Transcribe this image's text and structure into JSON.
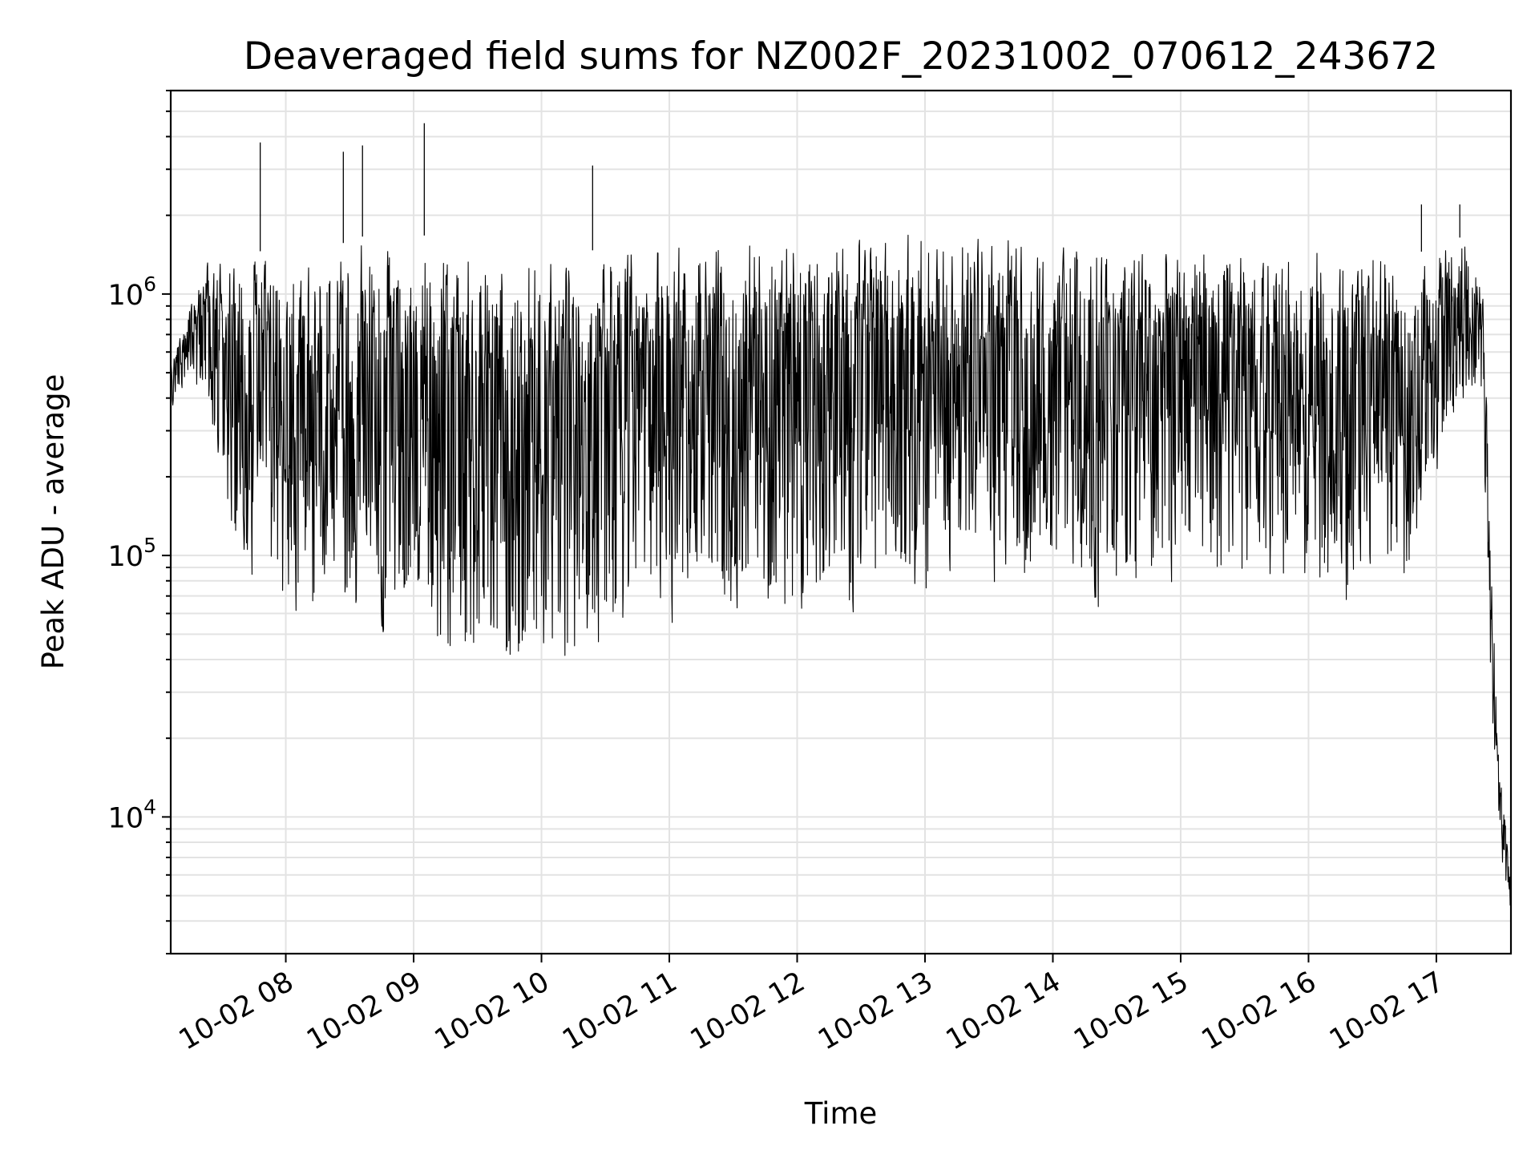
{
  "chart_data": {
    "type": "line",
    "title": "Deaveraged field sums for NZ002F_20231002_070612_243672",
    "xlabel": "Time",
    "ylabel": "Peak ADU - average",
    "yscale": "log",
    "xlim": [
      "2023-10-02 07:06",
      "2023-10-02 17:35"
    ],
    "ylim": [
      3000,
      6000000
    ],
    "grid": true,
    "x_ticks": [
      {
        "value": "2023-10-02 08:00",
        "label": "10-02 08"
      },
      {
        "value": "2023-10-02 09:00",
        "label": "10-02 09"
      },
      {
        "value": "2023-10-02 10:00",
        "label": "10-02 10"
      },
      {
        "value": "2023-10-02 11:00",
        "label": "10-02 11"
      },
      {
        "value": "2023-10-02 12:00",
        "label": "10-02 12"
      },
      {
        "value": "2023-10-02 13:00",
        "label": "10-02 13"
      },
      {
        "value": "2023-10-02 14:00",
        "label": "10-02 14"
      },
      {
        "value": "2023-10-02 15:00",
        "label": "10-02 15"
      },
      {
        "value": "2023-10-02 16:00",
        "label": "10-02 16"
      },
      {
        "value": "2023-10-02 17:00",
        "label": "10-02 17"
      }
    ],
    "y_ticks": [
      {
        "value": 10000,
        "base": "10",
        "exp": "4"
      },
      {
        "value": 100000,
        "base": "10",
        "exp": "5"
      },
      {
        "value": 1000000,
        "base": "10",
        "exp": "6"
      }
    ],
    "series_color": "#000000",
    "envelope": {
      "note": "dense line series; upper and lower envelope in data units",
      "x": [
        "2023-10-02 07:06",
        "2023-10-02 07:15",
        "2023-10-02 07:25",
        "2023-10-02 07:35",
        "2023-10-02 07:45",
        "2023-10-02 08:00",
        "2023-10-02 08:20",
        "2023-10-02 08:40",
        "2023-10-02 09:00",
        "2023-10-02 09:20",
        "2023-10-02 09:40",
        "2023-10-02 10:00",
        "2023-10-02 10:20",
        "2023-10-02 10:40",
        "2023-10-02 11:00",
        "2023-10-02 11:30",
        "2023-10-02 12:00",
        "2023-10-02 12:30",
        "2023-10-02 13:00",
        "2023-10-02 13:30",
        "2023-10-02 14:00",
        "2023-10-02 14:15",
        "2023-10-02 14:30",
        "2023-10-02 15:00",
        "2023-10-02 15:30",
        "2023-10-02 16:00",
        "2023-10-02 16:15",
        "2023-10-02 16:30",
        "2023-10-02 16:45",
        "2023-10-02 17:00",
        "2023-10-02 17:15",
        "2023-10-02 17:22",
        "2023-10-02 17:26",
        "2023-10-02 17:30",
        "2023-10-02 17:35"
      ],
      "upper": [
        550000,
        900000,
        1500000,
        1300000,
        1500000,
        1300000,
        1500000,
        1700000,
        1700000,
        1600000,
        1400000,
        1450000,
        1450000,
        1550000,
        1650000,
        1700000,
        1750000,
        1700000,
        1800000,
        1700000,
        1650000,
        1700000,
        1600000,
        1600000,
        1550000,
        1600000,
        1500000,
        1500000,
        1400000,
        1500000,
        1700000,
        1000000,
        100000,
        15000,
        6000
      ],
      "lower": [
        350000,
        500000,
        250000,
        90000,
        70000,
        55000,
        55000,
        50000,
        45000,
        32000,
        28000,
        32000,
        38000,
        45000,
        50000,
        55000,
        55000,
        60000,
        65000,
        70000,
        65000,
        55000,
        60000,
        65000,
        60000,
        70000,
        60000,
        65000,
        70000,
        200000,
        400000,
        300000,
        20000,
        6000,
        4000
      ]
    },
    "spikes": [
      {
        "x": "2023-10-02 07:48",
        "y": 3800000
      },
      {
        "x": "2023-10-02 08:27",
        "y": 3500000
      },
      {
        "x": "2023-10-02 08:36",
        "y": 3700000
      },
      {
        "x": "2023-10-02 09:05",
        "y": 4500000
      },
      {
        "x": "2023-10-02 10:24",
        "y": 3100000
      },
      {
        "x": "2023-10-02 16:53",
        "y": 2200000
      },
      {
        "x": "2023-10-02 17:11",
        "y": 2200000
      }
    ]
  }
}
